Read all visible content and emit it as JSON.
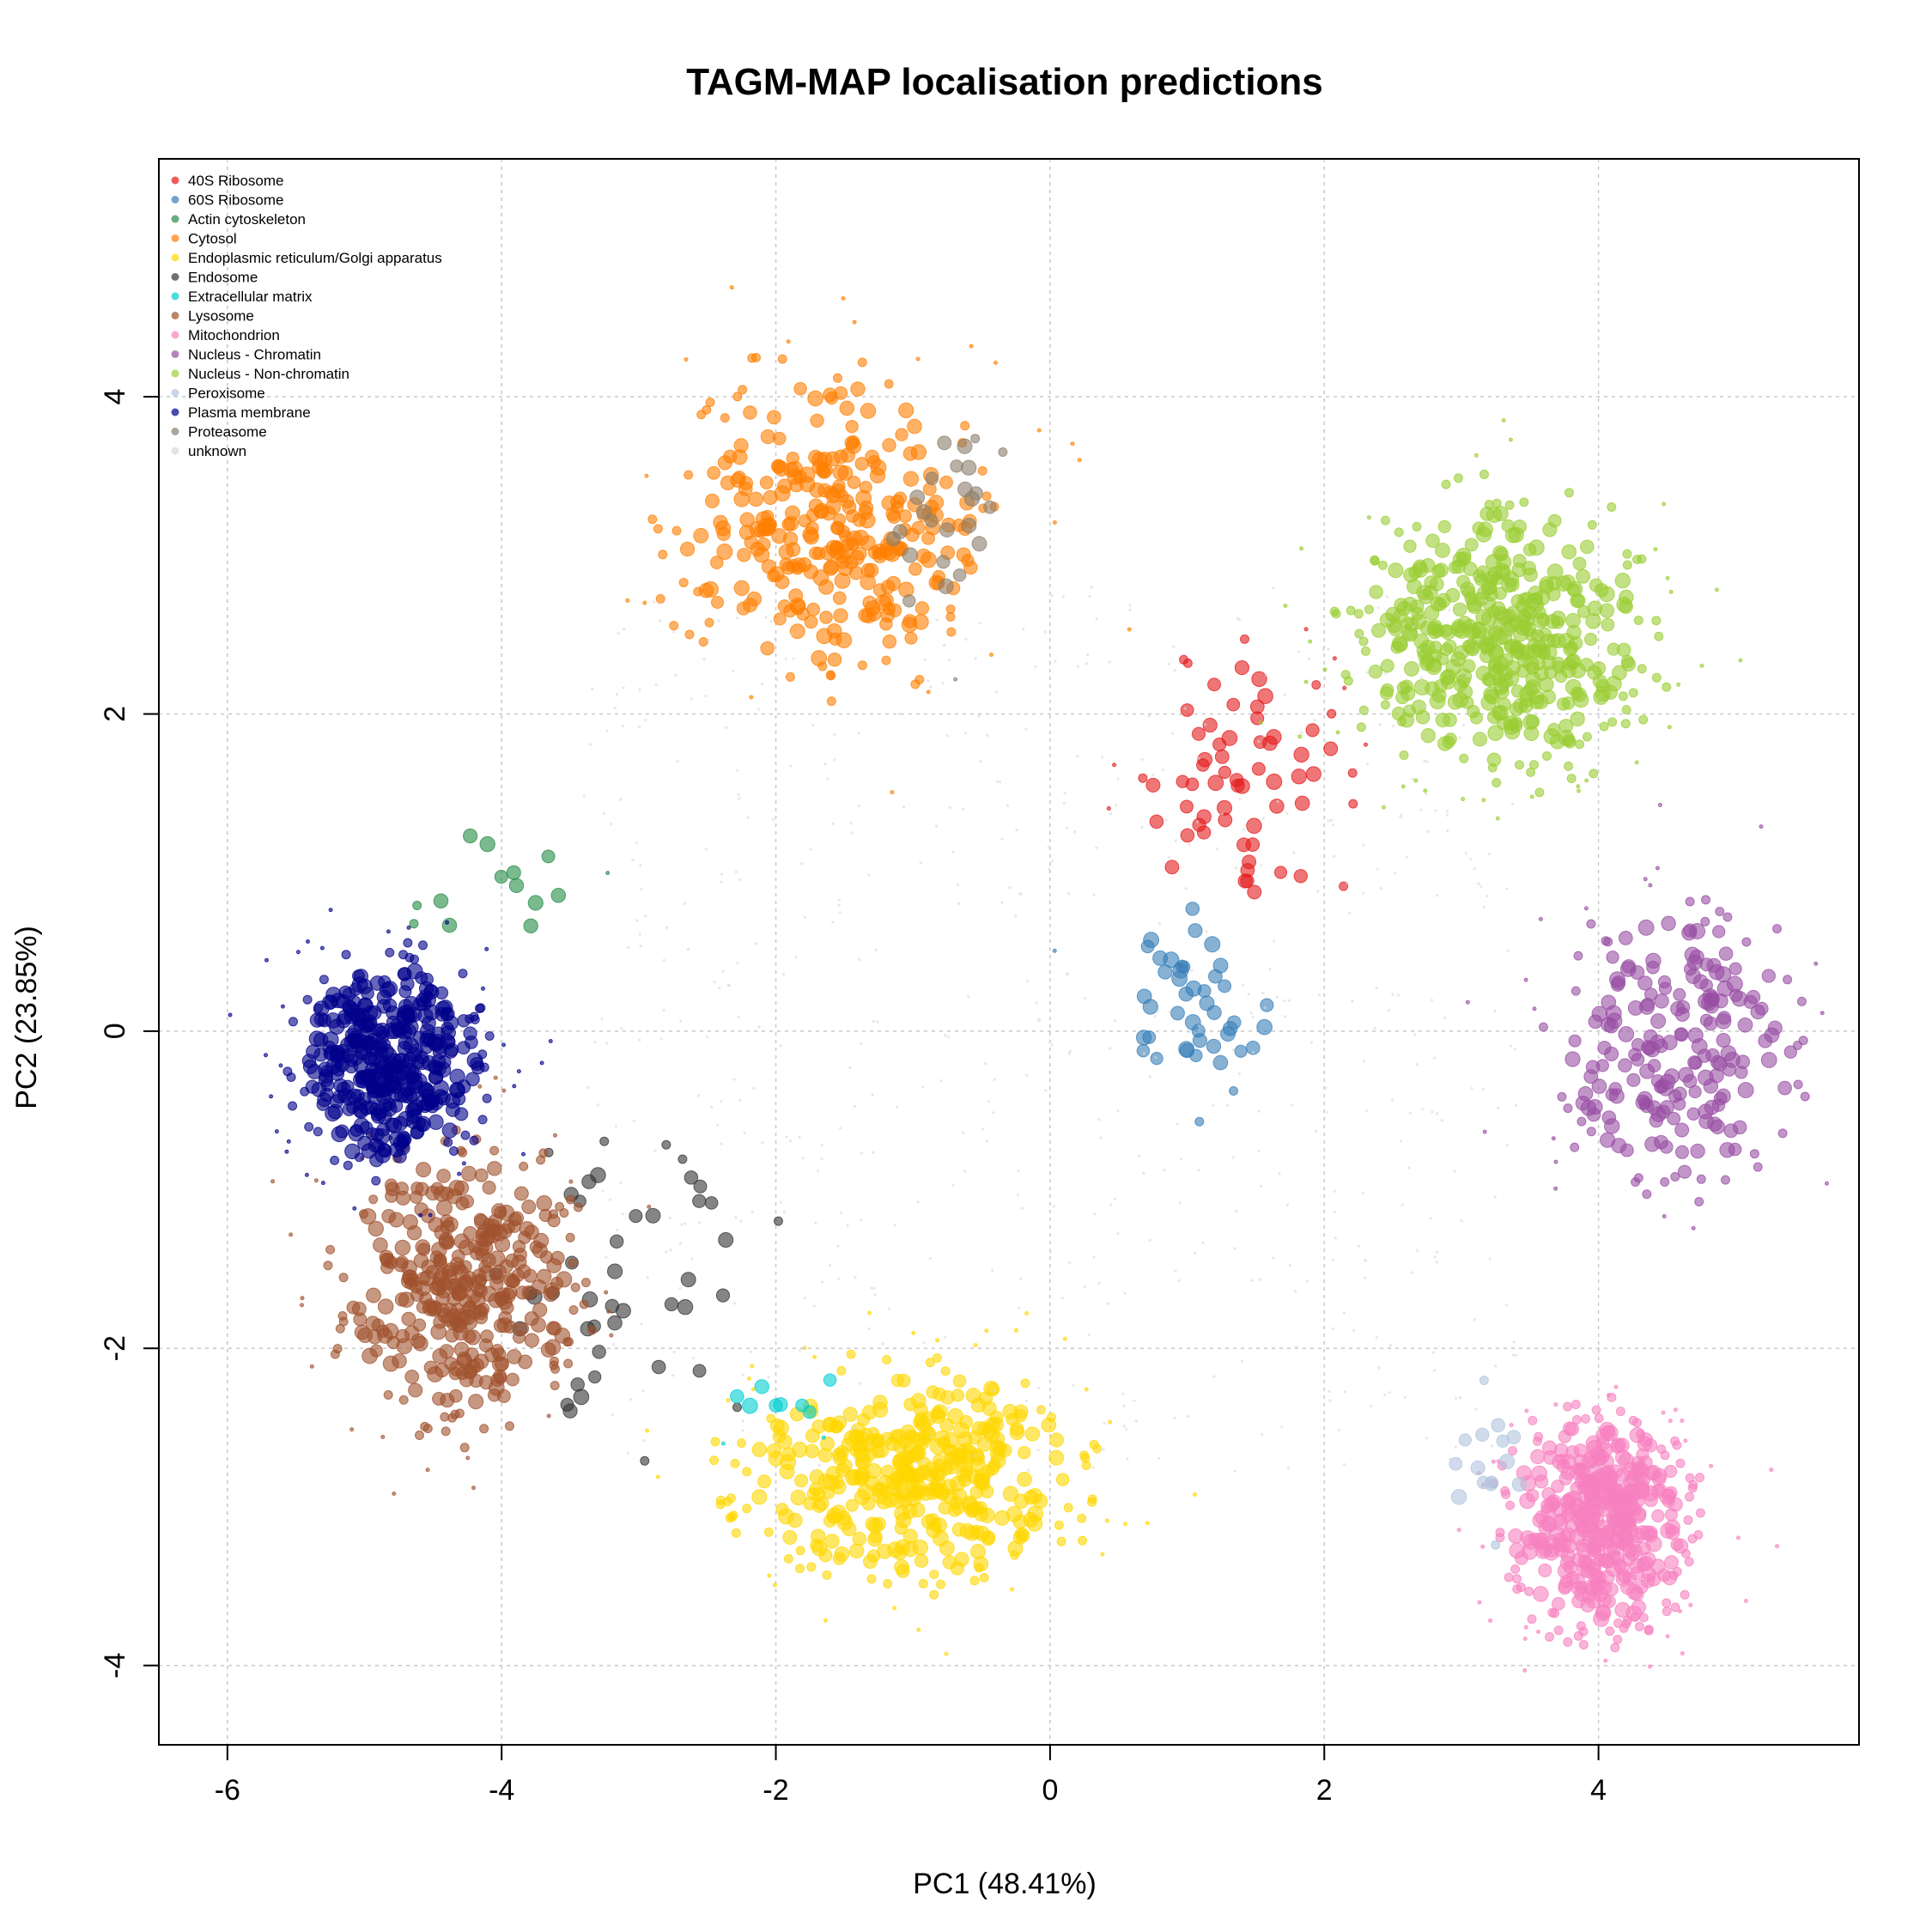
{
  "chart_data": {
    "type": "scatter",
    "title": "TAGM-MAP localisation predictions",
    "xlabel": "PC1 (48.41%)",
    "ylabel": "PC2 (23.85%)",
    "xlim": [
      -6.5,
      5.9
    ],
    "ylim": [
      -4.5,
      5.5
    ],
    "x_ticks": [
      -6,
      -4,
      -2,
      0,
      2,
      4
    ],
    "y_ticks": [
      -4,
      -2,
      0,
      2,
      4
    ],
    "grid": true,
    "legend_position": "top-left",
    "series": [
      {
        "name": "40S Ribosome",
        "color": "#E41A1C",
        "center": [
          1.4,
          1.5
        ],
        "spread": [
          0.4,
          0.45
        ],
        "count": 70
      },
      {
        "name": "60S Ribosome",
        "color": "#377EB8",
        "center": [
          1.1,
          0.2
        ],
        "spread": [
          0.3,
          0.35
        ],
        "count": 45
      },
      {
        "name": "Actin cytoskeleton",
        "color": "#238B45",
        "center": [
          -4.0,
          0.8
        ],
        "spread": [
          0.3,
          0.3
        ],
        "count": 14
      },
      {
        "name": "Cytosol",
        "color": "#FF7F00",
        "center": [
          -1.6,
          3.2
        ],
        "spread": [
          0.6,
          0.5
        ],
        "count": 330
      },
      {
        "name": "Endoplasmic reticulum/Golgi apparatus",
        "color": "#FFD700",
        "center": [
          -1.0,
          -2.8
        ],
        "spread": [
          0.65,
          0.35
        ],
        "count": 420
      },
      {
        "name": "Endosome",
        "color": "#333333",
        "center": [
          -3.2,
          -1.6
        ],
        "spread": [
          0.6,
          0.5
        ],
        "count": 45
      },
      {
        "name": "Extracellular matrix",
        "color": "#00CED1",
        "center": [
          -2.0,
          -2.3
        ],
        "spread": [
          0.25,
          0.12
        ],
        "count": 10
      },
      {
        "name": "Lysosome",
        "color": "#A0522D",
        "center": [
          -4.3,
          -1.6
        ],
        "spread": [
          0.45,
          0.45
        ],
        "count": 380
      },
      {
        "name": "Mitochondrion",
        "color": "#F781BF",
        "center": [
          4.0,
          -3.1
        ],
        "spread": [
          0.35,
          0.35
        ],
        "count": 460
      },
      {
        "name": "Nucleus - Chromatin",
        "color": "#984EA3",
        "center": [
          4.6,
          -0.1
        ],
        "spread": [
          0.45,
          0.45
        ],
        "count": 230
      },
      {
        "name": "Nucleus - Non-chromatin",
        "color": "#9ACD32",
        "center": [
          3.3,
          2.5
        ],
        "spread": [
          0.55,
          0.45
        ],
        "count": 460
      },
      {
        "name": "Peroxisome",
        "color": "#B0C4DE",
        "center": [
          3.2,
          -2.7
        ],
        "spread": [
          0.2,
          0.25
        ],
        "count": 15
      },
      {
        "name": "Plasma membrane",
        "color": "#00008B",
        "center": [
          -4.8,
          -0.2
        ],
        "spread": [
          0.35,
          0.35
        ],
        "count": 430
      },
      {
        "name": "Proteasome",
        "color": "#8B7D6B",
        "center": [
          -0.8,
          3.2
        ],
        "spread": [
          0.25,
          0.35
        ],
        "count": 25
      },
      {
        "name": "unknown",
        "color": "#D9D9D9",
        "center": [
          0.0,
          0.0
        ],
        "spread": [
          1.5,
          1.5
        ],
        "count": 600
      }
    ]
  }
}
